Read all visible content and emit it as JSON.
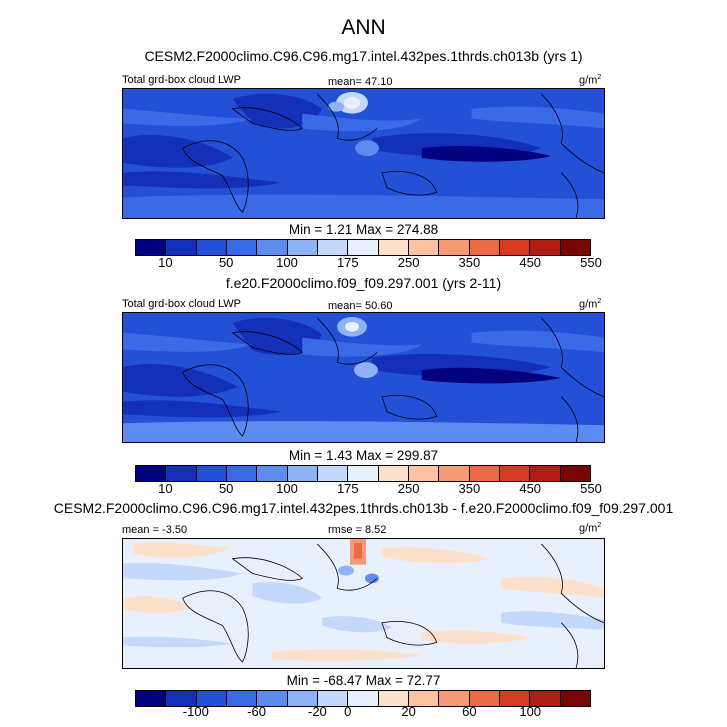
{
  "title": "ANN",
  "panels": [
    {
      "case": "CESM2.F2000climo.C96.C96.mg17.intel.432pes.1thrds.ch013b (yrs 1)",
      "left_label": "Total grd-box cloud LWP",
      "center_label": "mean=  47.10",
      "units": "g/m",
      "units_sup": "2",
      "minmax": "Min =   1.21 Max = 274.88"
    },
    {
      "case": "f.e20.F2000climo.f09_f09.297.001 (yrs 2-11)",
      "left_label": "Total grd-box cloud LWP",
      "center_label": "mean=  50.60",
      "units": "g/m",
      "units_sup": "2",
      "minmax": "Min =   1.43 Max = 299.87"
    },
    {
      "case": "CESM2.F2000climo.C96.C96.mg17.intel.432pes.1thrds.ch013b - f.e20.F2000climo.f09_f09.297.001",
      "left_label": "mean = -3.50",
      "center_label": "rmse =  8.52",
      "units": "g/m",
      "units_sup": "2",
      "minmax": "Min = -68.47 Max = 72.77"
    }
  ],
  "colorbar_abs": {
    "colors": [
      "#02027e",
      "#1530b8",
      "#2350d6",
      "#3a6ae6",
      "#5d8bf0",
      "#8fb2f7",
      "#c4d8fb",
      "#e8f0fd",
      "#fde1cc",
      "#fbc2a4",
      "#f69a76",
      "#ec6a46",
      "#d53a23",
      "#b01d14",
      "#7a0604"
    ],
    "labels": [
      "10",
      "50",
      "100",
      "175",
      "250",
      "350",
      "450",
      "550"
    ]
  },
  "colorbar_diff": {
    "colors": [
      "#02027e",
      "#1530b8",
      "#2350d6",
      "#3a6ae6",
      "#5d8bf0",
      "#8fb2f7",
      "#c4d8fb",
      "#e8f0fd",
      "#fde1cc",
      "#fbc2a4",
      "#f69a76",
      "#ec6a46",
      "#d53a23",
      "#b01d14",
      "#7a0604"
    ],
    "labels": [
      "-100",
      "-60",
      "-20",
      "0",
      "20",
      "60",
      "100"
    ]
  }
}
